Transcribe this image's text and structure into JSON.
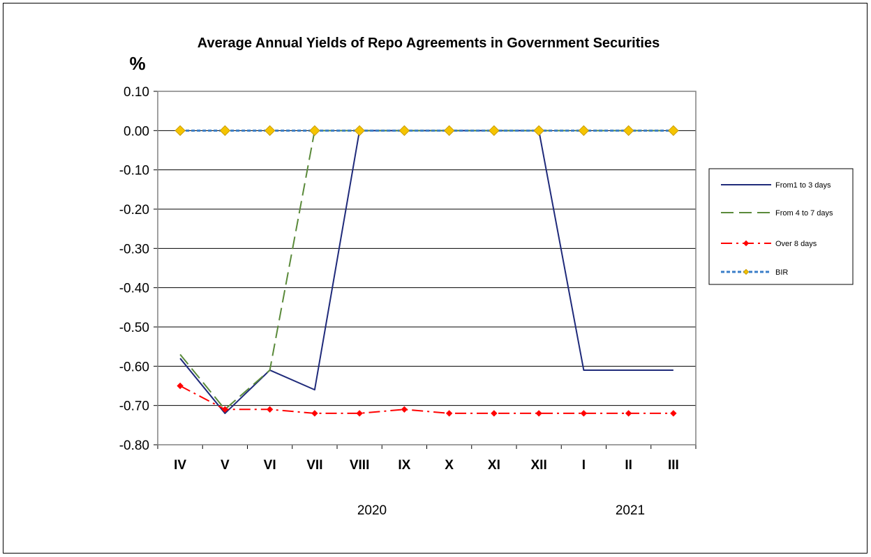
{
  "chart_data": {
    "type": "line",
    "title": "Average Annual Yields of Repo Agreements in Government Securities",
    "ylabel": "%",
    "xlabel": "",
    "categories": [
      "IV",
      "V",
      "VI",
      "VII",
      "VIII",
      "IX",
      "X",
      "XI",
      "XII",
      "I",
      "II",
      "III"
    ],
    "year_labels": [
      "2020",
      "2021"
    ],
    "ylim": [
      -0.8,
      0.1
    ],
    "yticks": [
      "0.10",
      "0.00",
      "-0.10",
      "-0.20",
      "-0.30",
      "-0.40",
      "-0.50",
      "-0.60",
      "-0.70",
      "-0.80"
    ],
    "grid": "horizontal",
    "legend_position": "right",
    "series": [
      {
        "name": "From1 to 3 days",
        "color": "#1f2a7a",
        "style": "solid",
        "marker": "none",
        "values": [
          -0.58,
          -0.72,
          -0.61,
          -0.66,
          0.0,
          0.0,
          0.0,
          0.0,
          0.0,
          -0.61,
          -0.61,
          -0.61
        ]
      },
      {
        "name": "From 4 to 7 days",
        "color": "#5a8a3a",
        "style": "dashed",
        "marker": "none",
        "values": [
          -0.57,
          -0.71,
          -0.61,
          0.0,
          0.0,
          0.0,
          0.0,
          0.0,
          0.0,
          0.0,
          0.0,
          0.0
        ]
      },
      {
        "name": "Over 8 days",
        "color": "#ff0000",
        "style": "dashdot",
        "marker": "diamond",
        "values": [
          -0.65,
          -0.71,
          -0.71,
          -0.72,
          -0.72,
          -0.71,
          -0.72,
          -0.72,
          -0.72,
          -0.72,
          -0.72,
          -0.72
        ]
      },
      {
        "name": "BIR",
        "color": "#3a7ec8",
        "style": "dotted",
        "marker": "diamond-gold",
        "values": [
          0.0,
          0.0,
          0.0,
          0.0,
          0.0,
          0.0,
          0.0,
          0.0,
          0.0,
          0.0,
          0.0,
          0.0
        ]
      }
    ]
  }
}
